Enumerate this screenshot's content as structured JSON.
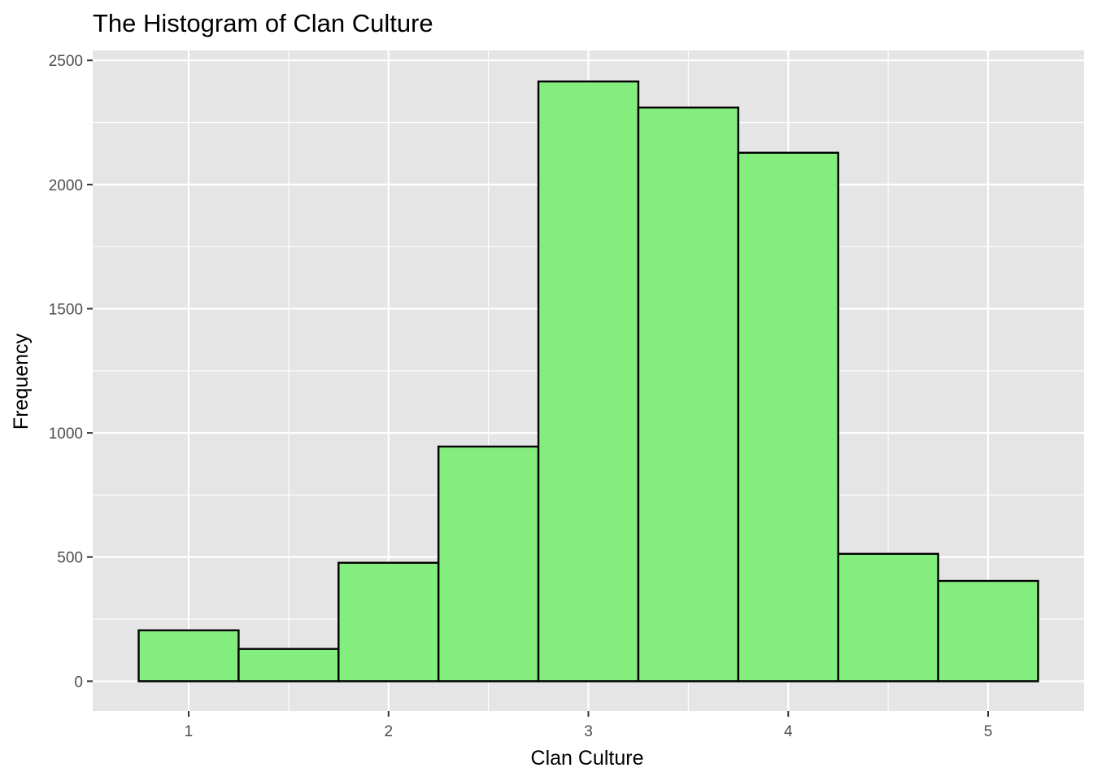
{
  "chart_data": {
    "type": "bar",
    "title": "The Histogram of Clan Culture",
    "xlabel": "Clan Culture",
    "ylabel": "Frequency",
    "bin_width": 0.5,
    "bins": [
      {
        "center": 1.0,
        "value": 205
      },
      {
        "center": 1.5,
        "value": 130
      },
      {
        "center": 2.0,
        "value": 477
      },
      {
        "center": 2.5,
        "value": 945
      },
      {
        "center": 3.0,
        "value": 2415
      },
      {
        "center": 3.5,
        "value": 2310
      },
      {
        "center": 4.0,
        "value": 2128
      },
      {
        "center": 4.5,
        "value": 513
      },
      {
        "center": 5.0,
        "value": 404
      }
    ],
    "xlim": [
      0.52,
      5.48
    ],
    "ylim": [
      -120,
      2540
    ],
    "x_ticks": [
      "1",
      "2",
      "3",
      "4",
      "5"
    ],
    "y_ticks": [
      "0",
      "500",
      "1000",
      "1500",
      "2000",
      "2500"
    ],
    "grid": true,
    "colors": {
      "bar_fill": "#83ee7e",
      "bar_stroke": "#000000",
      "panel_bg": "#e5e5e5",
      "grid": "#ffffff"
    }
  }
}
